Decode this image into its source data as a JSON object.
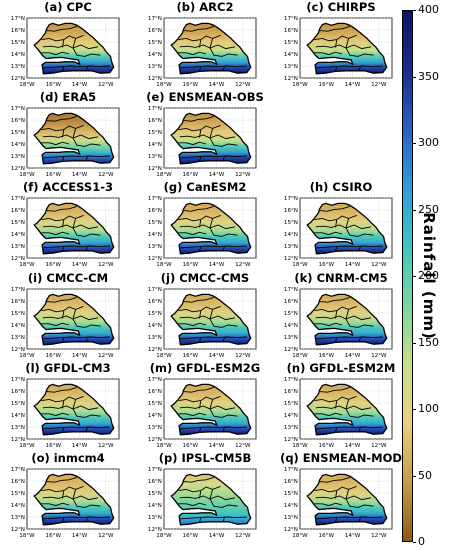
{
  "legend": {
    "label": "Rainfall (mm)",
    "ticks": [
      "0",
      "50",
      "100",
      "150",
      "200",
      "250",
      "300",
      "350",
      "400"
    ],
    "range": [
      0,
      400
    ],
    "colors": [
      "#8c5a1a",
      "#c89a4a",
      "#e8cf7e",
      "#c8e08a",
      "#7fd6a0",
      "#3cc6c2",
      "#2f9cd6",
      "#2a5fc6",
      "#1a2b8c",
      "#0e1660"
    ]
  },
  "axes": {
    "lat_labels": [
      "17°N",
      "16°N",
      "15°N",
      "14°N",
      "13°N",
      "12°N"
    ],
    "lon_labels": [
      "18°W",
      "16°W",
      "14°W",
      "12°W"
    ]
  },
  "panels": [
    {
      "title": "(a) CPC",
      "style": "obs"
    },
    {
      "title": "(b) ARC2",
      "style": "obs"
    },
    {
      "title": "(c) CHIRPS",
      "style": "obs"
    },
    {
      "title": "(d) ERA5",
      "style": "era"
    },
    {
      "title": "(e) ENSMEAN-OBS",
      "style": "obs"
    },
    null,
    {
      "title": "(f) ACCESS1-3",
      "style": "model"
    },
    {
      "title": "(g) CanESM2",
      "style": "model"
    },
    {
      "title": "(h) CSIRO",
      "style": "model"
    },
    {
      "title": "(i) CMCC-CM",
      "style": "model"
    },
    {
      "title": "(j) CMCC-CMS",
      "style": "model"
    },
    {
      "title": "(k) CNRM-CM5",
      "style": "model"
    },
    {
      "title": "(l) GFDL-CM3",
      "style": "model"
    },
    {
      "title": "(m) GFDL-ESM2G",
      "style": "model"
    },
    {
      "title": "(n) GFDL-ESM2M",
      "style": "model"
    },
    {
      "title": "(o) inmcm4",
      "style": "model"
    },
    {
      "title": "(p) IPSL-CM5B",
      "style": "ipsl"
    },
    {
      "title": "(q) ENSMEAN-MOD",
      "style": "model"
    }
  ]
}
